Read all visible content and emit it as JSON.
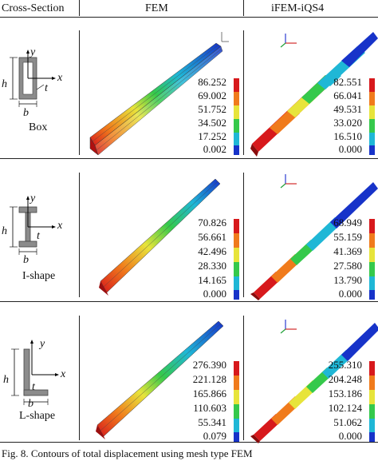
{
  "header": {
    "col1": "Cross-Section",
    "col2": "FEM",
    "col3": "iFEM-iQS4"
  },
  "rows": [
    {
      "section_label": "Box",
      "dims": {
        "y": "y",
        "x": "x",
        "h": "h",
        "t": "t",
        "b": "b"
      },
      "fem_scale": [
        "86.252",
        "69.002",
        "51.752",
        "34.502",
        "17.252",
        "0.002"
      ],
      "ifem_scale": [
        "82.551",
        "66.041",
        "49.531",
        "33.020",
        "16.510",
        "0.000"
      ]
    },
    {
      "section_label": "I-shape",
      "dims": {
        "y": "y",
        "x": "x",
        "h": "h",
        "t": "t",
        "b": "b"
      },
      "fem_scale": [
        "70.826",
        "56.661",
        "42.496",
        "28.330",
        "14.165",
        "0.000"
      ],
      "ifem_scale": [
        "68.949",
        "55.159",
        "41.369",
        "27.580",
        "13.790",
        "0.000"
      ]
    },
    {
      "section_label": "L-shape",
      "dims": {
        "y": "y",
        "x": "x",
        "h": "h",
        "t": "t",
        "b": "b"
      },
      "fem_scale": [
        "276.390",
        "221.128",
        "165.866",
        "110.603",
        "55.341",
        "0.079"
      ],
      "ifem_scale": [
        "255.310",
        "204.248",
        "153.186",
        "102.124",
        "51.062",
        "0.000"
      ]
    }
  ],
  "colormap": [
    "#d7191c",
    "#f07b1c",
    "#e7e43b",
    "#35c94b",
    "#1fb7d6",
    "#1733c9"
  ],
  "caption": "Fig. 8.    Contours of total displacement using mesh type FEM"
}
